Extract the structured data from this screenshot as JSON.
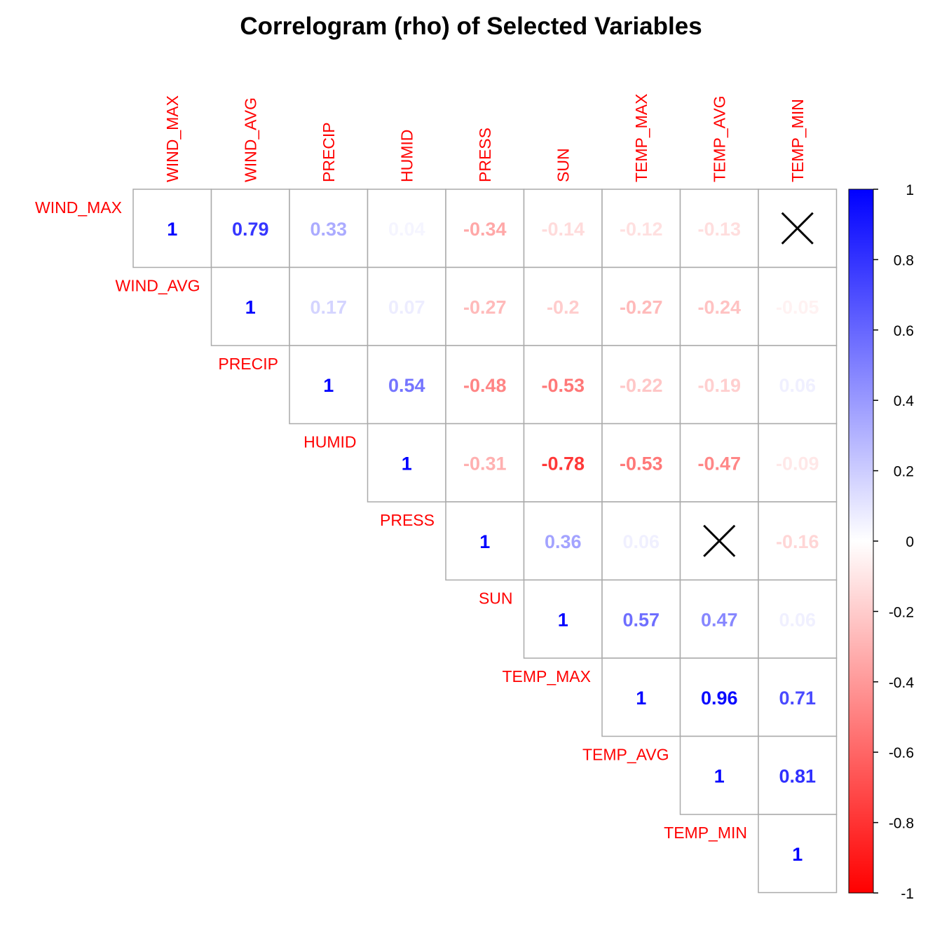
{
  "chart_data": {
    "type": "heatmap",
    "title": "Correlogram (rho) of Selected Variables",
    "variables": [
      "WIND_MAX",
      "WIND_AVG",
      "PRECIP",
      "HUMID",
      "PRESS",
      "SUN",
      "TEMP_MAX",
      "TEMP_AVG",
      "TEMP_MIN"
    ],
    "layout": "upper-triangle",
    "matrix": [
      [
        1,
        0.79,
        0.33,
        0.04,
        -0.34,
        -0.14,
        -0.12,
        -0.13,
        null
      ],
      [
        null,
        1,
        0.17,
        0.07,
        -0.27,
        -0.2,
        -0.27,
        -0.24,
        -0.05
      ],
      [
        null,
        null,
        1,
        0.54,
        -0.48,
        -0.53,
        -0.22,
        -0.19,
        0.06
      ],
      [
        null,
        null,
        null,
        1,
        -0.31,
        -0.78,
        -0.53,
        -0.47,
        -0.09
      ],
      [
        null,
        null,
        null,
        null,
        1,
        0.36,
        0.06,
        null,
        -0.16
      ],
      [
        null,
        null,
        null,
        null,
        null,
        1,
        0.57,
        0.47,
        0.06
      ],
      [
        null,
        null,
        null,
        null,
        null,
        null,
        1,
        0.96,
        0.71
      ],
      [
        null,
        null,
        null,
        null,
        null,
        null,
        null,
        1,
        0.81
      ],
      [
        null,
        null,
        null,
        null,
        null,
        null,
        null,
        null,
        1
      ]
    ],
    "insignificant_marks": [
      [
        0,
        8
      ],
      [
        4,
        7
      ]
    ],
    "insignificant_mark": "X",
    "colorbar": {
      "range": [
        -1,
        1
      ],
      "ticks": [
        "1",
        "0.8",
        "0.6",
        "0.4",
        "0.2",
        "0",
        "-0.2",
        "-0.4",
        "-0.6",
        "-0.8",
        "-1"
      ],
      "colors": {
        "negative": "#FF0000",
        "zero": "#FFFFFF",
        "positive": "#0000FF"
      }
    },
    "label_color": "#FF0000",
    "grid_color": "#AAAAAA"
  }
}
